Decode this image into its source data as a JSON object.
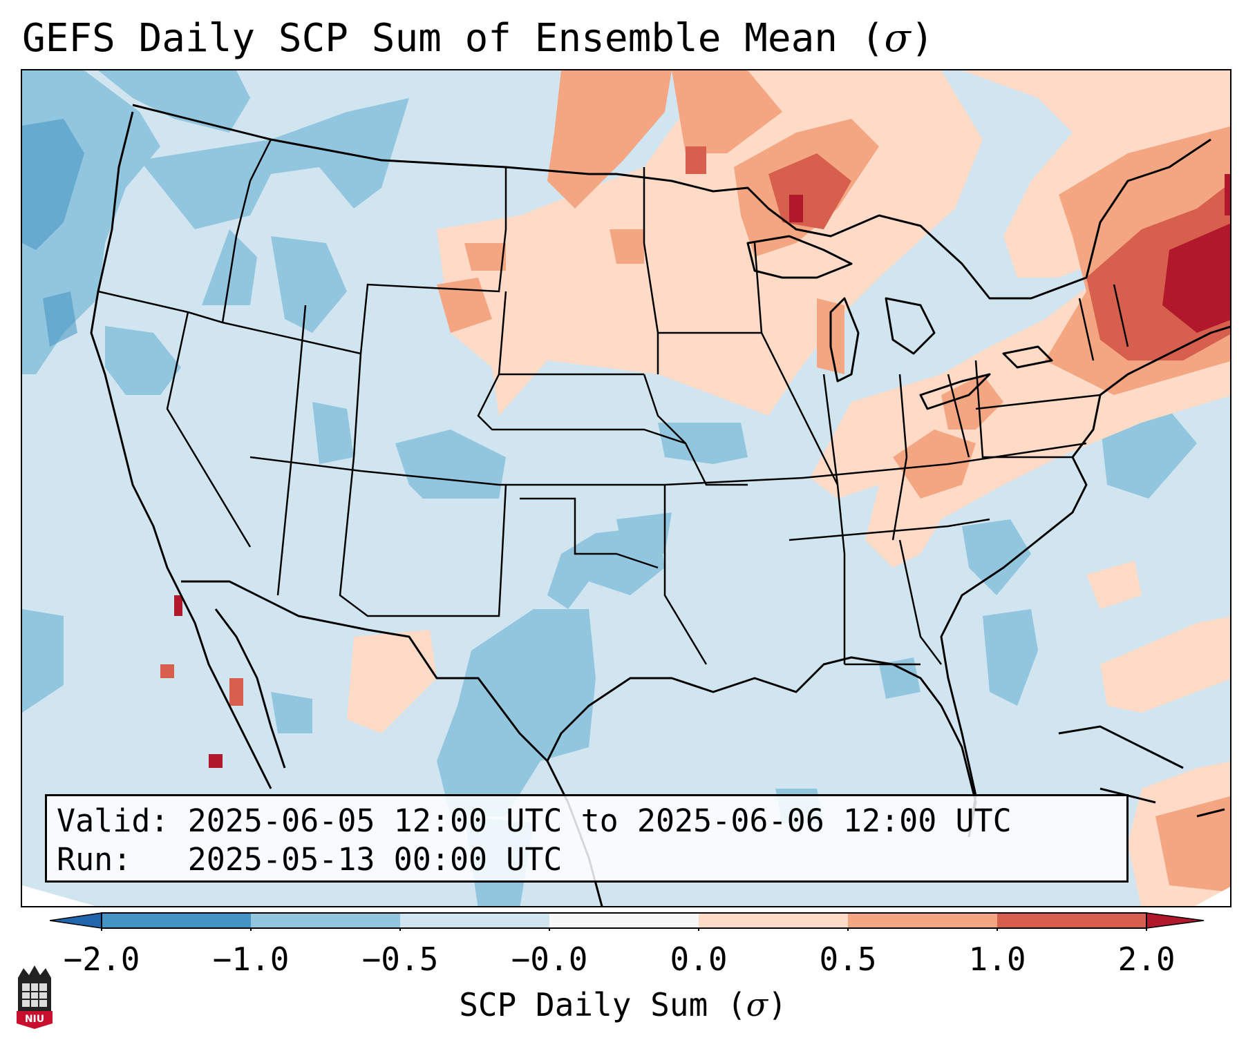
{
  "title": {
    "text": "GEFS Daily SCP Sum of Ensemble Mean (",
    "symbol": "σ",
    "close": ")"
  },
  "info": {
    "valid_label": "Valid:",
    "valid_value": "2025-06-05 12:00 UTC to 2025-06-06 12:00 UTC",
    "run_label": "Run:",
    "run_value": "2025-05-13 00:00 UTC"
  },
  "colorbar": {
    "label_text": "SCP Daily Sum (",
    "label_symbol": "σ",
    "label_close": ")",
    "ticks": [
      "−2.0",
      "−1.0",
      "−0.5",
      "−0.0",
      "0.0",
      "0.5",
      "1.0",
      "2.0"
    ],
    "bins": [
      {
        "range": "−2.0 to −1.0",
        "color": "#4393c3"
      },
      {
        "range": "−1.0 to −0.5",
        "color": "#92c5de"
      },
      {
        "range": "−0.5 to −0.0",
        "color": "#d1e5f0"
      },
      {
        "range": "−0.0 to 0.0",
        "color": "#f7f7f7"
      },
      {
        "range": "0.0 to 0.5",
        "color": "#fddbc7"
      },
      {
        "range": "0.5 to 1.0",
        "color": "#f4a582"
      },
      {
        "range": "1.0 to 2.0",
        "color": "#d6604d"
      }
    ],
    "under_color": "#2166ac",
    "over_color": "#b2182b"
  },
  "logo": {
    "text": "NIU"
  },
  "colors": {
    "ocean_land_base": "#d1e5f0",
    "light_blue": "#92c5de",
    "mid_blue": "#4393c3",
    "light_orange": "#fddbc7",
    "orange": "#f4a582",
    "red": "#d6604d",
    "dark_red": "#b2182b",
    "logo_red": "#c8102e"
  }
}
